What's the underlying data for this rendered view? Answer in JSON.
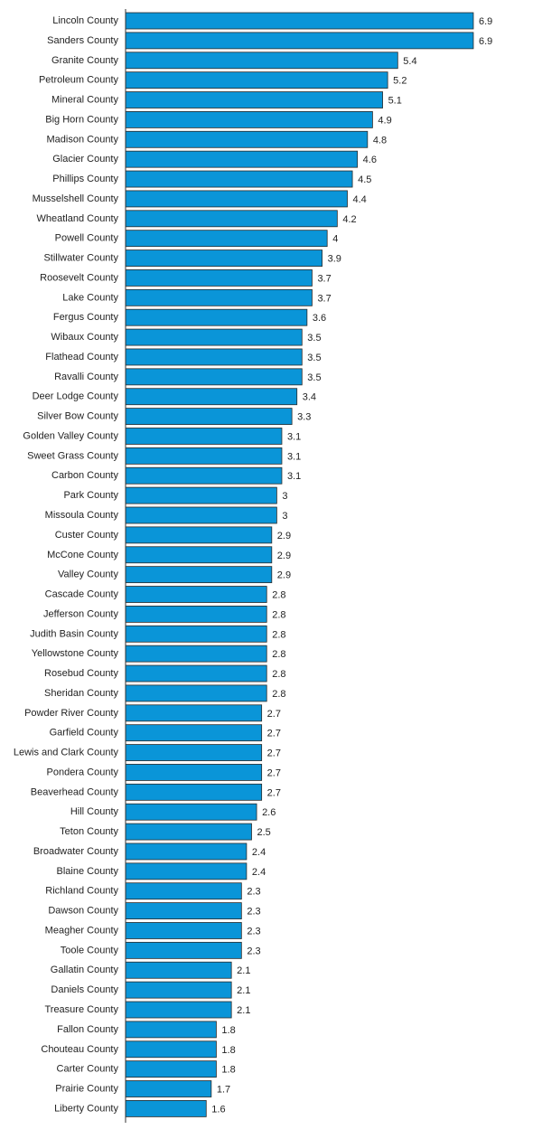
{
  "chart_data": {
    "type": "bar",
    "orientation": "horizontal",
    "title": "",
    "xlabel": "",
    "ylabel": "",
    "xlim": [
      0,
      6.9
    ],
    "grid": false,
    "legend": "none",
    "colors": {
      "bar": "#0a95d8",
      "bar_stroke": "#2b2b2b",
      "axis": "#333333",
      "text": "#222222"
    },
    "categories": [
      "Lincoln County",
      "Sanders County",
      "Granite County",
      "Petroleum County",
      "Mineral County",
      "Big Horn County",
      "Madison County",
      "Glacier County",
      "Phillips County",
      "Musselshell County",
      "Wheatland County",
      "Powell County",
      "Stillwater County",
      "Roosevelt County",
      "Lake County",
      "Fergus County",
      "Wibaux County",
      "Flathead County",
      "Ravalli County",
      "Deer Lodge County",
      "Silver Bow County",
      "Golden Valley County",
      "Sweet Grass County",
      "Carbon County",
      "Park County",
      "Missoula County",
      "Custer County",
      "McCone County",
      "Valley County",
      "Cascade County",
      "Jefferson County",
      "Judith Basin County",
      "Yellowstone County",
      "Rosebud County",
      "Sheridan County",
      "Powder River County",
      "Garfield County",
      "Lewis and Clark County",
      "Pondera County",
      "Beaverhead County",
      "Hill County",
      "Teton County",
      "Broadwater County",
      "Blaine County",
      "Richland County",
      "Dawson County",
      "Meagher County",
      "Toole County",
      "Gallatin County",
      "Daniels County",
      "Treasure County",
      "Fallon County",
      "Chouteau County",
      "Carter County",
      "Prairie County",
      "Liberty County"
    ],
    "values": [
      6.9,
      6.9,
      5.4,
      5.2,
      5.1,
      4.9,
      4.8,
      4.6,
      4.5,
      4.4,
      4.2,
      4,
      3.9,
      3.7,
      3.7,
      3.6,
      3.5,
      3.5,
      3.5,
      3.4,
      3.3,
      3.1,
      3.1,
      3.1,
      3,
      3,
      2.9,
      2.9,
      2.9,
      2.8,
      2.8,
      2.8,
      2.8,
      2.8,
      2.8,
      2.7,
      2.7,
      2.7,
      2.7,
      2.7,
      2.6,
      2.5,
      2.4,
      2.4,
      2.3,
      2.3,
      2.3,
      2.3,
      2.1,
      2.1,
      2.1,
      1.8,
      1.8,
      1.8,
      1.7,
      1.6
    ]
  }
}
